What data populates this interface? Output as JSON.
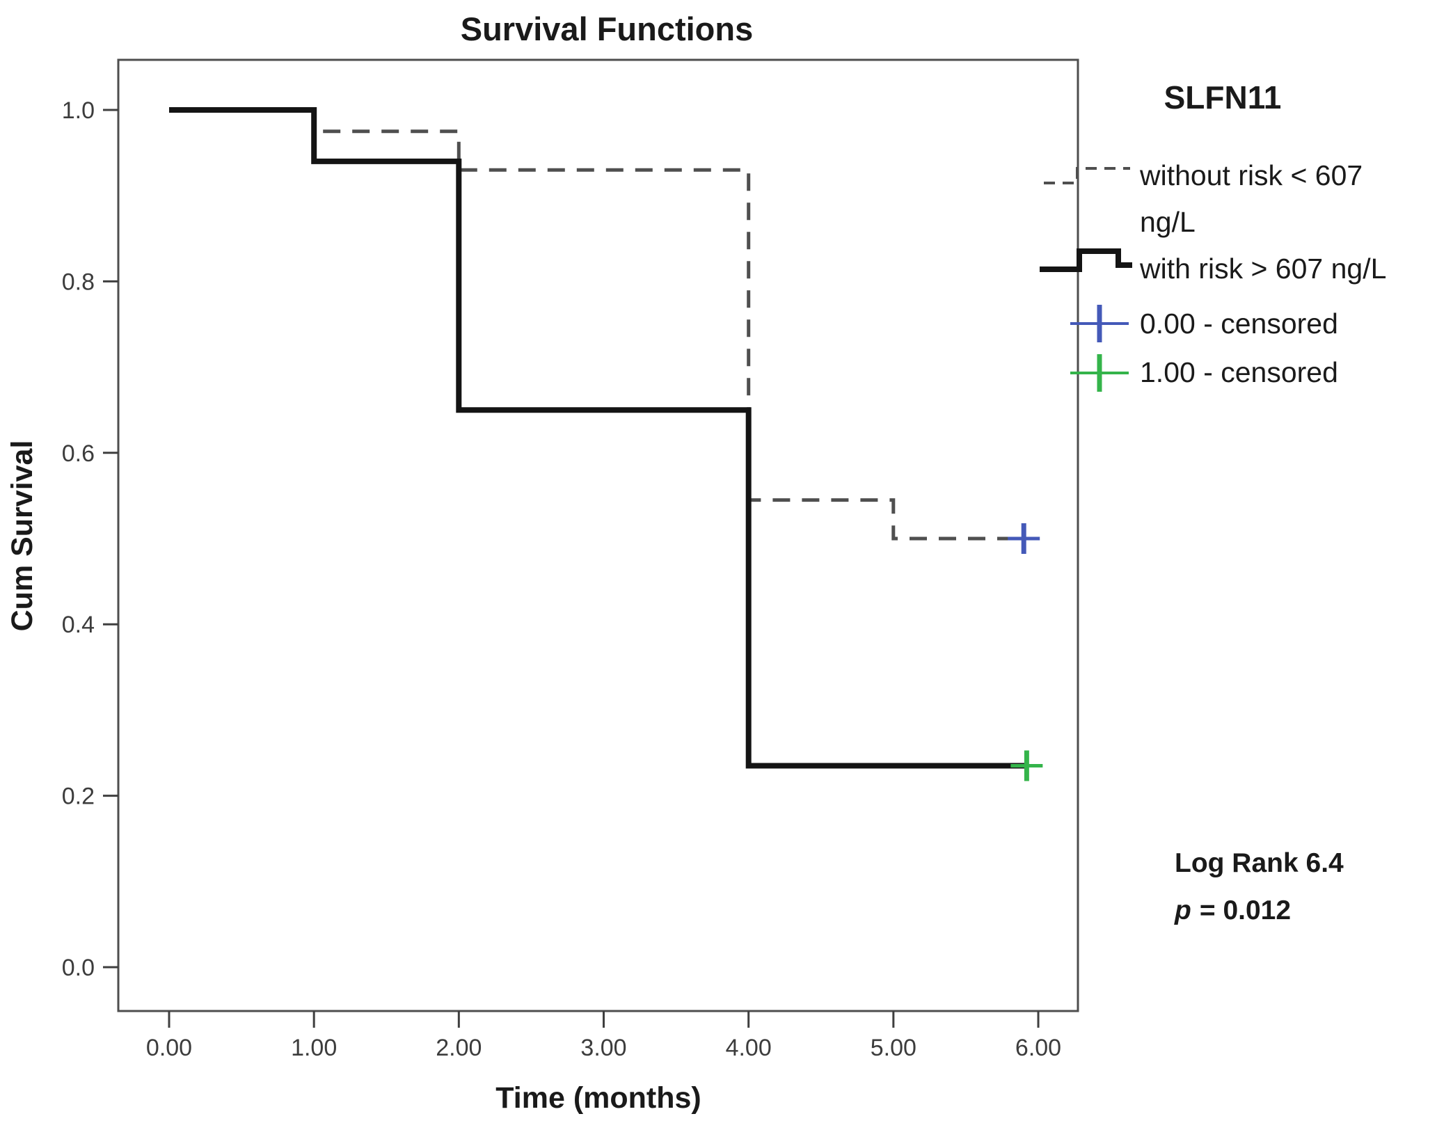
{
  "title": "Survival Functions",
  "axes": {
    "x_label": "Time (months)",
    "y_label": "Cum Survival"
  },
  "legend": {
    "title": "SLFN11",
    "items": [
      {
        "key": "dashed-line",
        "label_lines": [
          "without risk < 607",
          "ng/L"
        ]
      },
      {
        "key": "solid-line",
        "label_lines": [
          "with risk > 607 ng/L"
        ]
      },
      {
        "key": "plus-blue",
        "label_lines": [
          "0.00 - censored"
        ]
      },
      {
        "key": "plus-green",
        "label_lines": [
          "1.00 - censored"
        ]
      }
    ]
  },
  "annotation": {
    "line1": "Log Rank 6.4",
    "p_label": "p",
    "p_rest": "= 0.012"
  },
  "chart_data": {
    "type": "line",
    "subtype": "kaplan-meier-step",
    "title": "Survival Functions",
    "xlabel": "Time (months)",
    "ylabel": "Cum Survival",
    "legend_title": "SLFN11",
    "legend_position": "right-outside",
    "grid": false,
    "xlim": [
      -0.35,
      6.3
    ],
    "ylim": [
      -0.05,
      1.06
    ],
    "x_ticks": {
      "values": [
        0,
        1,
        2,
        3,
        4,
        5,
        6
      ],
      "labels": [
        "0.00",
        "1.00",
        "2.00",
        "3.00",
        "4.00",
        "5.00",
        "6.00"
      ]
    },
    "y_ticks": {
      "values": [
        1.0,
        0.8,
        0.6,
        0.4,
        0.2,
        0.0
      ],
      "labels": [
        "1.0",
        "0.8",
        "0.6",
        "0.4",
        "0.2",
        "0.0"
      ]
    },
    "series": [
      {
        "name": "without risk < 607 ng/L",
        "group_code": "0.00",
        "line_style": "dashed",
        "color": "#4f4f4f",
        "width": 5,
        "steps": [
          [
            0,
            1.0
          ],
          [
            1,
            1.0
          ],
          [
            1,
            0.975
          ],
          [
            2,
            0.975
          ],
          [
            2,
            0.93
          ],
          [
            4,
            0.93
          ],
          [
            4,
            0.545
          ],
          [
            5,
            0.545
          ],
          [
            5,
            0.5
          ],
          [
            5.9,
            0.5
          ]
        ],
        "censored_points": [
          [
            5.9,
            0.5
          ]
        ],
        "censored_marker_color": "#4459b8"
      },
      {
        "name": "with risk > 607 ng/L",
        "group_code": "1.00",
        "line_style": "solid",
        "color": "#141414",
        "width": 8,
        "steps": [
          [
            0,
            1.0
          ],
          [
            1,
            1.0
          ],
          [
            1,
            0.94
          ],
          [
            2,
            0.94
          ],
          [
            2,
            0.65
          ],
          [
            4,
            0.65
          ],
          [
            4,
            0.235
          ],
          [
            5.92,
            0.235
          ]
        ],
        "censored_points": [
          [
            5.92,
            0.235
          ]
        ],
        "censored_marker_color": "#34b44a"
      }
    ],
    "censored_legend": [
      {
        "label": "0.00 - censored",
        "color": "#4459b8"
      },
      {
        "label": "1.00 - censored",
        "color": "#34b44a"
      }
    ],
    "annotations": [
      "Log Rank 6.4",
      "p = 0.012"
    ]
  }
}
